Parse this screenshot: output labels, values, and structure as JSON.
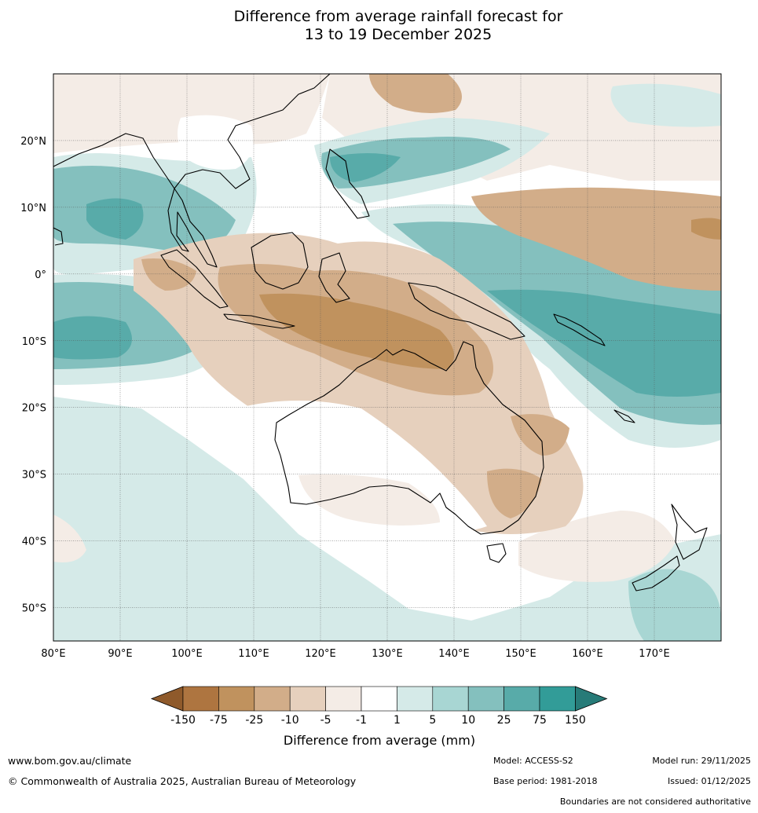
{
  "title": {
    "line1": "Difference from average rainfall forecast for",
    "line2": "13 to 19 December 2025"
  },
  "map": {
    "lon_range": [
      80,
      180
    ],
    "lat_range": [
      -55,
      30
    ],
    "lat_ticks": [
      {
        "value": 20,
        "label": "20°N"
      },
      {
        "value": 10,
        "label": "10°N"
      },
      {
        "value": 0,
        "label": "0°"
      },
      {
        "value": -10,
        "label": "10°S"
      },
      {
        "value": -20,
        "label": "20°S"
      },
      {
        "value": -30,
        "label": "30°S"
      },
      {
        "value": -40,
        "label": "40°S"
      },
      {
        "value": -50,
        "label": "50°S"
      }
    ],
    "lon_ticks": [
      {
        "value": 80,
        "label": "80°E"
      },
      {
        "value": 90,
        "label": "90°E"
      },
      {
        "value": 100,
        "label": "100°E"
      },
      {
        "value": 110,
        "label": "110°E"
      },
      {
        "value": 120,
        "label": "120°E"
      },
      {
        "value": 130,
        "label": "130°E"
      },
      {
        "value": 140,
        "label": "140°E"
      },
      {
        "value": 150,
        "label": "150°E"
      },
      {
        "value": 160,
        "label": "160°E"
      },
      {
        "value": 170,
        "label": "170°E"
      }
    ]
  },
  "legend": {
    "colors": [
      "#8f5a2b",
      "#ae7540",
      "#c0925e",
      "#d2ad89",
      "#e6d0bd",
      "#f4ece6",
      "#ffffff",
      "#d5eae8",
      "#a8d6d3",
      "#84c0be",
      "#58aba9",
      "#329c98",
      "#277b78"
    ],
    "tick_labels": [
      "-150",
      "-75",
      "-25",
      "-10",
      "-5",
      "-1",
      "1",
      "5",
      "10",
      "25",
      "75",
      "150"
    ],
    "caption": "Difference from average (mm)"
  },
  "footer": {
    "url": "www.bom.gov.au/climate",
    "copyright": "© Commonwealth of Australia 2025, Australian Bureau of Meteorology",
    "model": "Model: ACCESS-S2",
    "base_period": "Base period: 1981-2018",
    "model_run": "Model run: 29/11/2025",
    "issued": "Issued: 01/12/2025",
    "disclaimer": "Boundaries are not considered authoritative"
  }
}
